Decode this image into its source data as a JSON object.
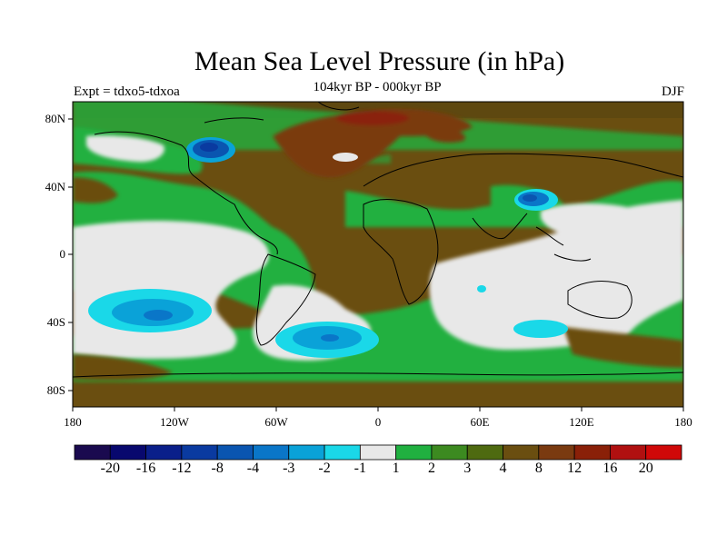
{
  "header": {
    "title": "Mean Sea Level Pressure (in hPa)",
    "subtitle": "104kyr BP - 000kyr BP",
    "experiment": "Expt = tdxo5-tdxoa",
    "season": "DJF"
  },
  "map": {
    "projection": "cylindrical equidistant",
    "lon_range": [
      -180,
      180
    ],
    "lat_range": [
      -90,
      90
    ],
    "lat_tick_labels": [
      "80N",
      "40N",
      "0",
      "40S",
      "80S"
    ],
    "lat_tick_values": [
      80,
      40,
      0,
      -40,
      -80
    ],
    "lon_tick_labels": [
      "180",
      "120W",
      "60W",
      "0",
      "60E",
      "120E",
      "180"
    ],
    "lon_tick_values": [
      -180,
      -120,
      -60,
      0,
      60,
      120,
      180
    ],
    "background_level": "3 to 4 hPa"
  },
  "colorbar": {
    "labels": [
      "-20",
      "-16",
      "-12",
      "-8",
      "-4",
      "-3",
      "-2",
      "-1",
      "1",
      "2",
      "3",
      "4",
      "8",
      "12",
      "16",
      "20"
    ],
    "colors": [
      "#1a0a4f",
      "#08086e",
      "#0a1f8a",
      "#0a3aa0",
      "#0a55b0",
      "#0a76c8",
      "#0aa2d8",
      "#1ad8e8",
      "#e8e8e8",
      "#20b040",
      "#3c8a20",
      "#4e6a10",
      "#6a4e10",
      "#7a3a10",
      "#8a2008",
      "#b01010",
      "#d00808"
    ]
  },
  "chart_data": {
    "type": "heatmap",
    "title": "Mean Sea Level Pressure (in hPa)",
    "subtitle": "104kyr BP - 000kyr BP",
    "xlim": [
      -180,
      180
    ],
    "ylim": [
      -90,
      90
    ],
    "features": [
      {
        "label": "Southeast Pacific low",
        "lon": -127,
        "lat": -33,
        "min_value": -3
      },
      {
        "label": "South Atlantic low",
        "lon": -30,
        "lat": -47,
        "min_value": -3
      },
      {
        "label": "Hudson Bay low",
        "lon": -85,
        "lat": 62,
        "min_value": -4
      },
      {
        "label": "Tibetan Plateau low",
        "lon": 95,
        "lat": 30,
        "min_value": -4
      },
      {
        "label": "South Indian Ocean low",
        "lon": 83,
        "lat": -40,
        "min_value": -2
      },
      {
        "label": "Arctic high",
        "lon": 10,
        "lat": 80,
        "max_value": 12
      },
      {
        "label": "Eurasia high",
        "lon": 30,
        "lat": 45,
        "max_value": 8
      }
    ]
  }
}
